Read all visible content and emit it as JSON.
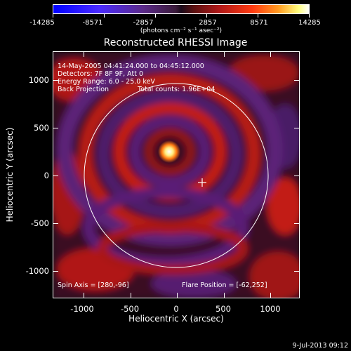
{
  "colorbar": {
    "ticks": [
      "-14285",
      "-8571",
      "-2857",
      "2857",
      "8571",
      "14285"
    ],
    "units": "(photons cm⁻² s⁻¹ asec⁻²)"
  },
  "title": "Reconstructed RHESSI Image",
  "info": {
    "time_range": "14-May-2005 04:41:24.000 to 04:45:12.000",
    "detectors": "Detectors: 7F 8F 9F, Att 0",
    "energy": "Energy Range: 6.0 - 25.0 keV",
    "method": "Back Projection",
    "counts": "Total counts: 1.96E+04",
    "spin_axis": "Spin Axis = [280,-96]",
    "flare_position": "Flare Position = [-62,252]"
  },
  "axes": {
    "xlabel": "Heliocentric X (arcsec)",
    "ylabel": "Heliocentric Y (arcsec)",
    "xticks": [
      "-1000",
      "-500",
      "0",
      "500",
      "1000"
    ],
    "yticks": [
      "1000",
      "500",
      "0",
      "-500",
      "-1000"
    ]
  },
  "footer": "9-Jul-2013 09:12"
}
